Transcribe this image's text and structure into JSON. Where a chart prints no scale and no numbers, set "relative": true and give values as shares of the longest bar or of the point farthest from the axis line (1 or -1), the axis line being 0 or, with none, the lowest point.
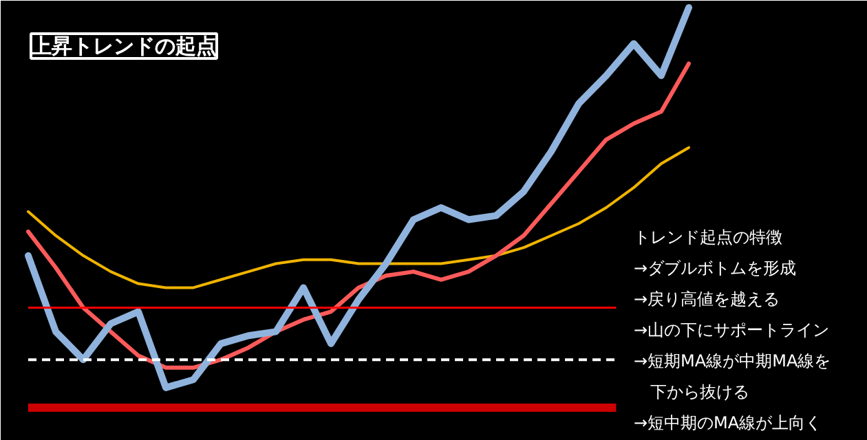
{
  "chart_data": {
    "type": "line",
    "relative": true,
    "title": "上昇トレンドの起点",
    "categories": [
      null,
      null,
      null,
      null,
      null,
      null,
      null,
      null,
      null,
      null,
      null,
      null,
      null,
      null,
      null,
      null,
      null,
      null,
      null,
      null,
      null,
      null,
      null,
      null,
      null
    ],
    "series": [
      {
        "color": "#f0b400",
        "values": [
          0.49,
          0.43,
          0.38,
          0.34,
          0.31,
          0.3,
          0.3,
          0.32,
          0.34,
          0.36,
          0.37,
          0.37,
          0.36,
          0.36,
          0.36,
          0.36,
          0.37,
          0.38,
          0.4,
          0.43,
          0.46,
          0.5,
          0.55,
          0.61,
          0.65
        ]
      },
      {
        "color": "#ff5a5a",
        "values": [
          0.44,
          0.35,
          0.25,
          0.19,
          0.13,
          0.1,
          0.1,
          0.12,
          0.15,
          0.19,
          0.22,
          0.24,
          0.3,
          0.33,
          0.34,
          0.32,
          0.34,
          0.38,
          0.43,
          0.51,
          0.59,
          0.67,
          0.71,
          0.74,
          0.86
        ]
      },
      {
        "color": "#8fb3dd",
        "values": [
          0.38,
          0.19,
          0.12,
          0.21,
          0.24,
          0.05,
          0.07,
          0.16,
          0.18,
          0.19,
          0.3,
          0.16,
          0.27,
          0.36,
          0.47,
          0.5,
          0.47,
          0.48,
          0.54,
          0.64,
          0.76,
          0.83,
          0.91,
          0.83,
          1
        ]
      }
    ],
    "ref_lines": [
      {
        "axis": "y",
        "value": 0,
        "color": "#cc0000"
      },
      {
        "axis": "y",
        "value": 0.25,
        "color": "#ff0000"
      },
      {
        "axis": "y",
        "value": 0.12,
        "color": "#ffffff",
        "line_style": "dashed"
      }
    ],
    "annotations": [
      "トレンド起点の特徴",
      "→ダブルボトムを形成",
      "→戻り高値を越える",
      "→山の下にサポートライン",
      "→短期MA線が中期MA線を",
      "　下から抜ける",
      "→短中期のMA線が上向く"
    ]
  }
}
